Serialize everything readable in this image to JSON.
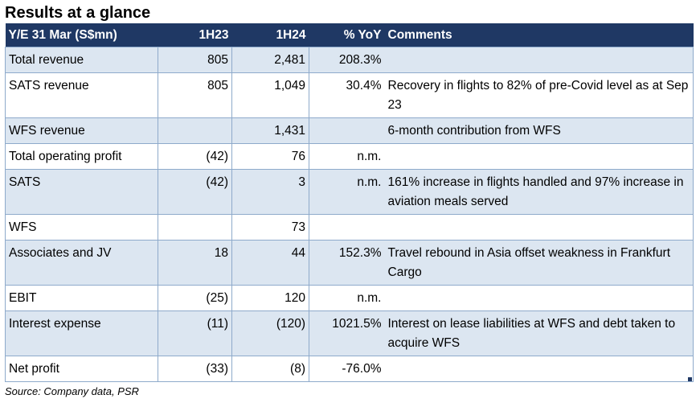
{
  "title": "Results at a glance",
  "header": {
    "col_label": "Y/E 31 Mar (S$mn)",
    "col_1h23": "1H23",
    "col_1h24": "1H24",
    "col_yoy": "% YoY",
    "col_comments": "Comments"
  },
  "rows": [
    {
      "label": "Total revenue",
      "h23": "805",
      "h24": "2,481",
      "yoy": "208.3%",
      "comment": ""
    },
    {
      "label": "SATS revenue",
      "h23": "805",
      "h24": "1,049",
      "yoy": "30.4%",
      "comment": "Recovery in flights to 82% of pre-Covid level as at Sep 23"
    },
    {
      "label": "WFS revenue",
      "h23": "",
      "h24": "1,431",
      "yoy": "",
      "comment": "6-month contribution from WFS"
    },
    {
      "label": "Total operating profit",
      "h23": "(42)",
      "h24": "76",
      "yoy": "n.m.",
      "comment": ""
    },
    {
      "label": "SATS",
      "h23": "(42)",
      "h24": "3",
      "yoy": "n.m.",
      "comment": "161% increase in flights handled and 97% increase in aviation meals served"
    },
    {
      "label": "WFS",
      "h23": "",
      "h24": "73",
      "yoy": "",
      "comment": ""
    },
    {
      "label": "Associates and JV",
      "h23": "18",
      "h24": "44",
      "yoy": "152.3%",
      "comment": "Travel rebound in Asia offset weakness in Frankfurt Cargo"
    },
    {
      "label": "EBIT",
      "h23": "(25)",
      "h24": "120",
      "yoy": "n.m.",
      "comment": ""
    },
    {
      "label": "Interest expense",
      "h23": "(11)",
      "h24": "(120)",
      "yoy": "1021.5%",
      "comment": "Interest on lease liabilities at WFS and debt taken to acquire WFS"
    },
    {
      "label": "Net profit",
      "h23": "(33)",
      "h24": "(8)",
      "yoy": "-76.0%",
      "comment": ""
    }
  ],
  "source": "Source: Company data, PSR"
}
